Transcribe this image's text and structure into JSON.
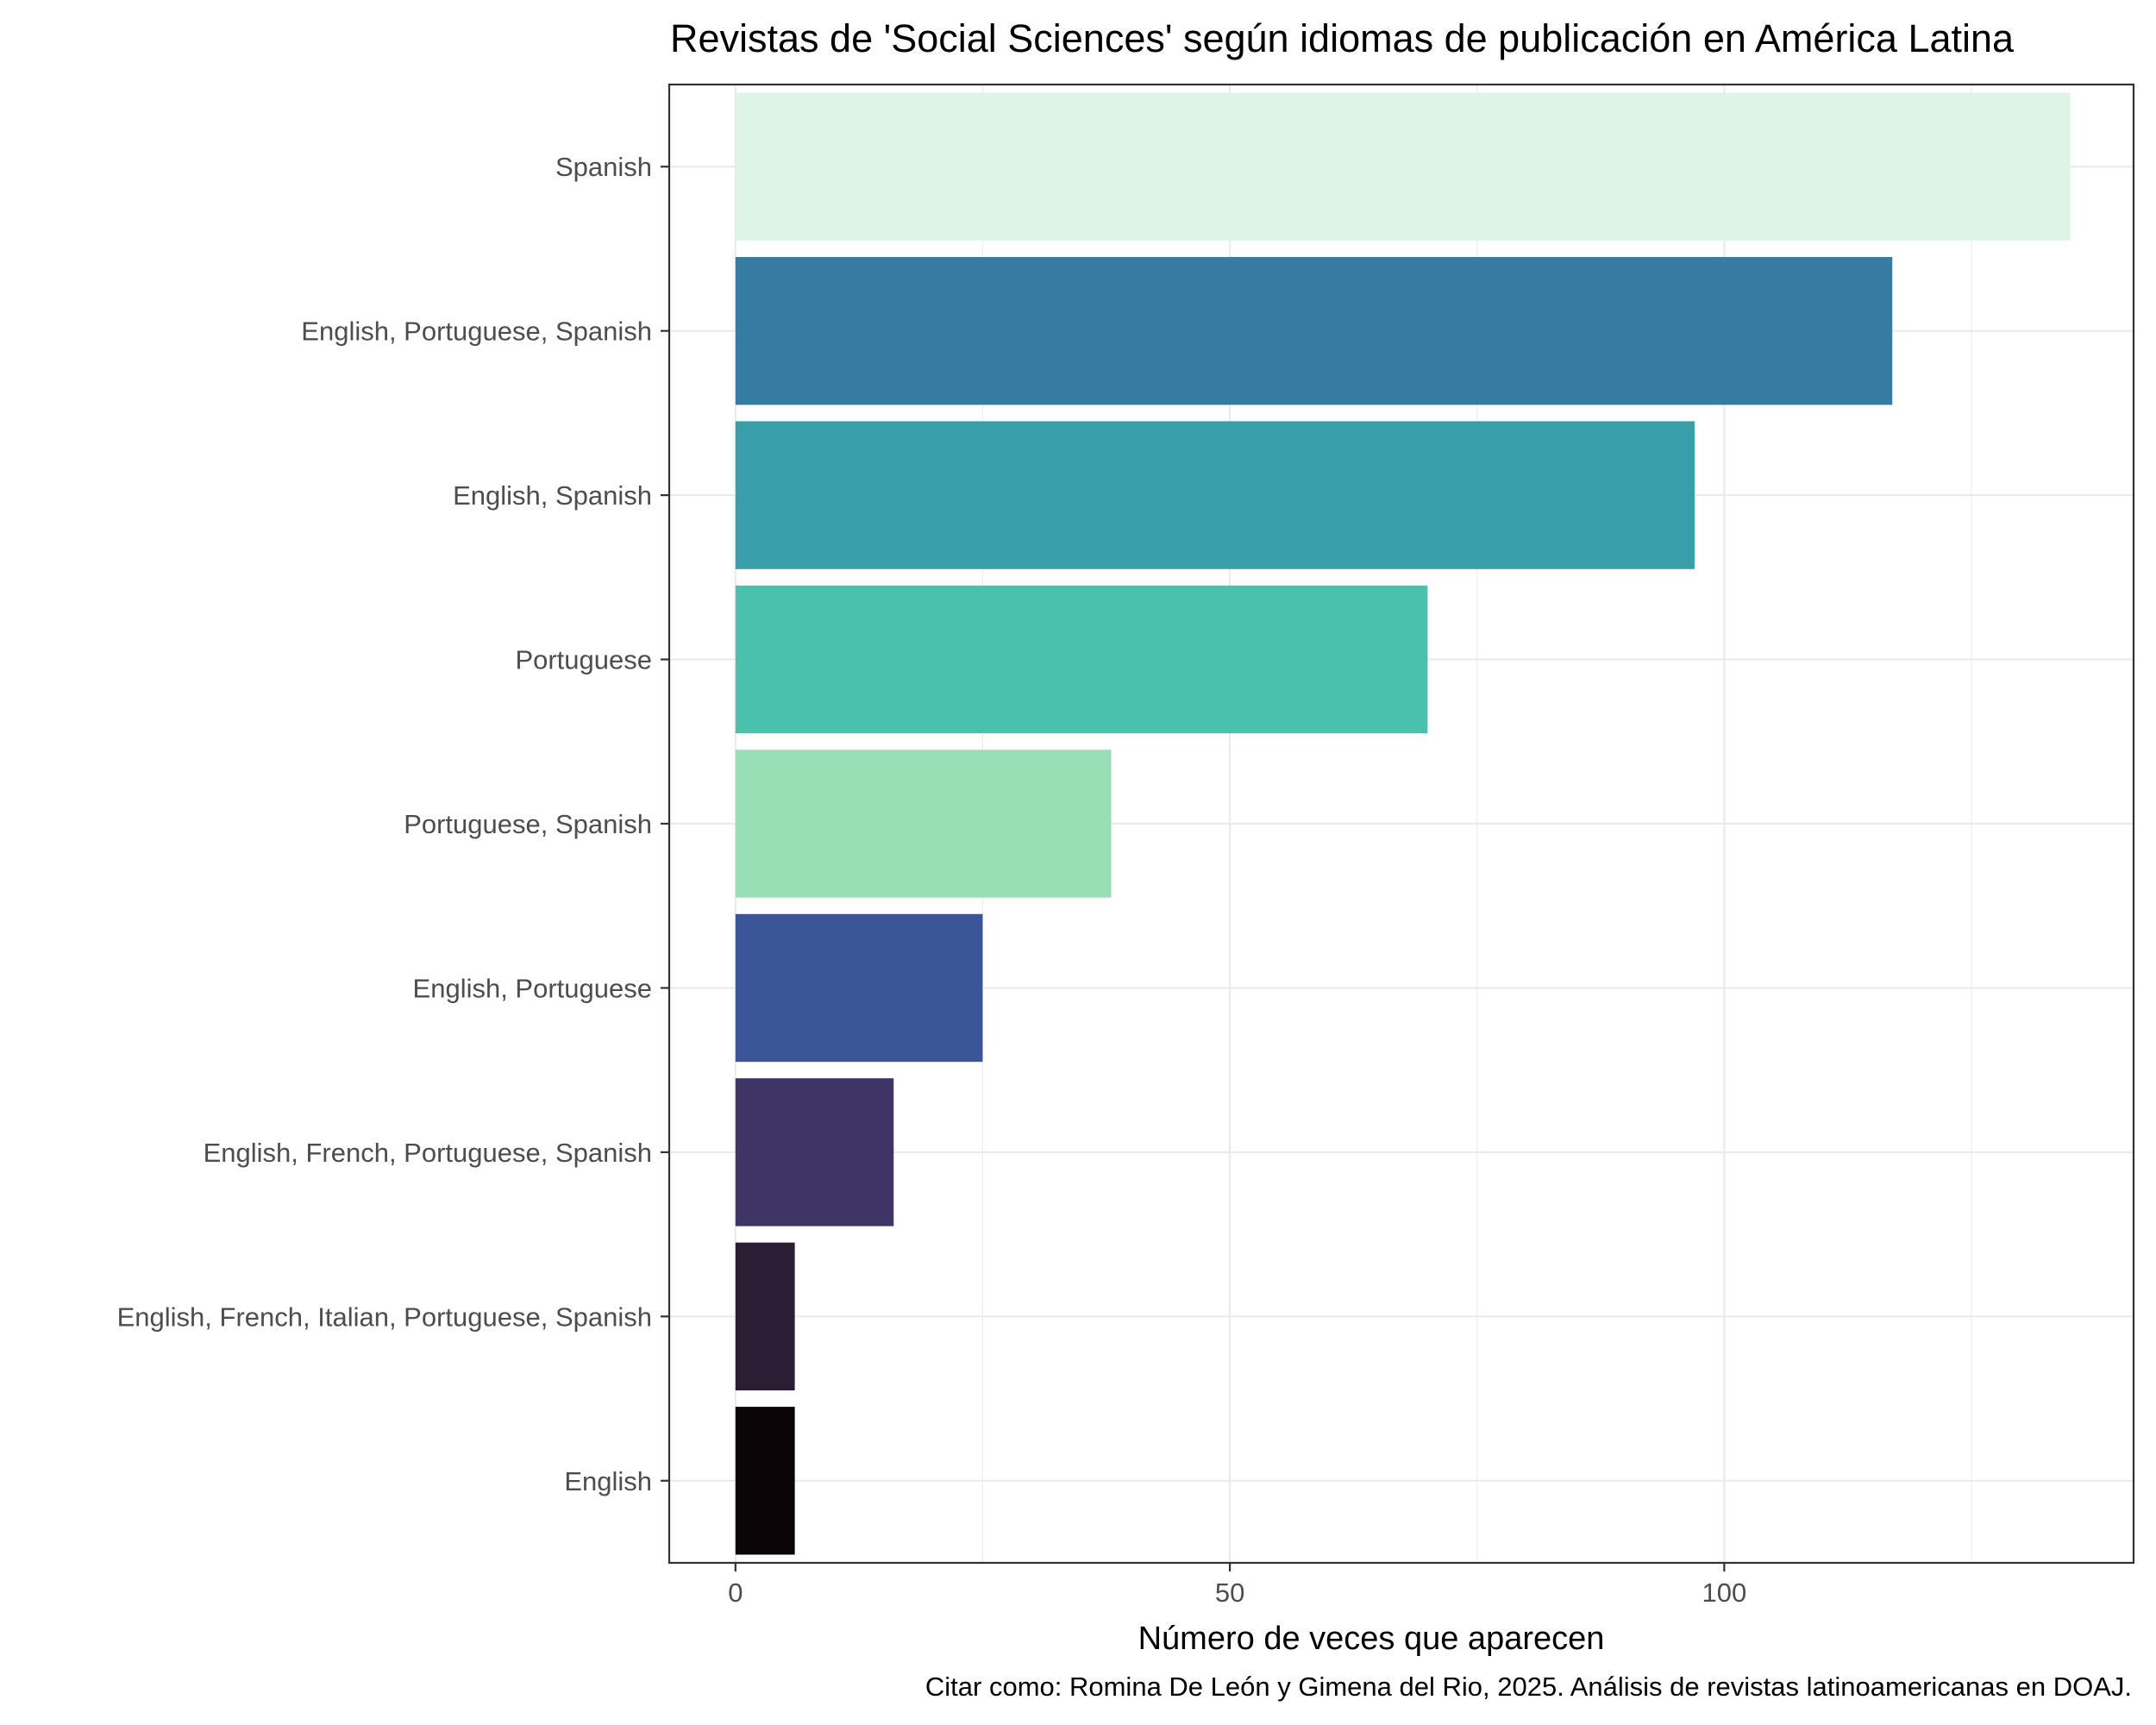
{
  "chart_data": {
    "type": "bar",
    "orientation": "horizontal",
    "title": "Revistas de 'Social Sciences' según idiomas de publicación en América Latina",
    "xlabel": "Número de veces que aparecen",
    "ylabel": "",
    "caption": "Citar como: Romina De León y Gimena del Rio, 2025. Análisis de revistas latinoamericanas en DOAJ.",
    "xlim": [
      -6.7,
      141.4
    ],
    "x_ticks": [
      0,
      50,
      100
    ],
    "x_tick_labels": [
      "0",
      "50",
      "100"
    ],
    "grid": true,
    "categories": [
      "Spanish",
      "English, Portuguese, Spanish",
      "English, Spanish",
      "Portuguese",
      "Portuguese, Spanish",
      "English, Portuguese",
      "English, French, Portuguese, Spanish",
      "English, French, Italian, Portuguese, Spanish",
      "English"
    ],
    "values": [
      135,
      117,
      97,
      70,
      38,
      25,
      16,
      6,
      6
    ],
    "colors": [
      "#def5e5",
      "#357ba2",
      "#389ea9",
      "#4ac1ad",
      "#99dfb5",
      "#3b5698",
      "#3e3566",
      "#2a1d34",
      "#0c0507"
    ]
  }
}
